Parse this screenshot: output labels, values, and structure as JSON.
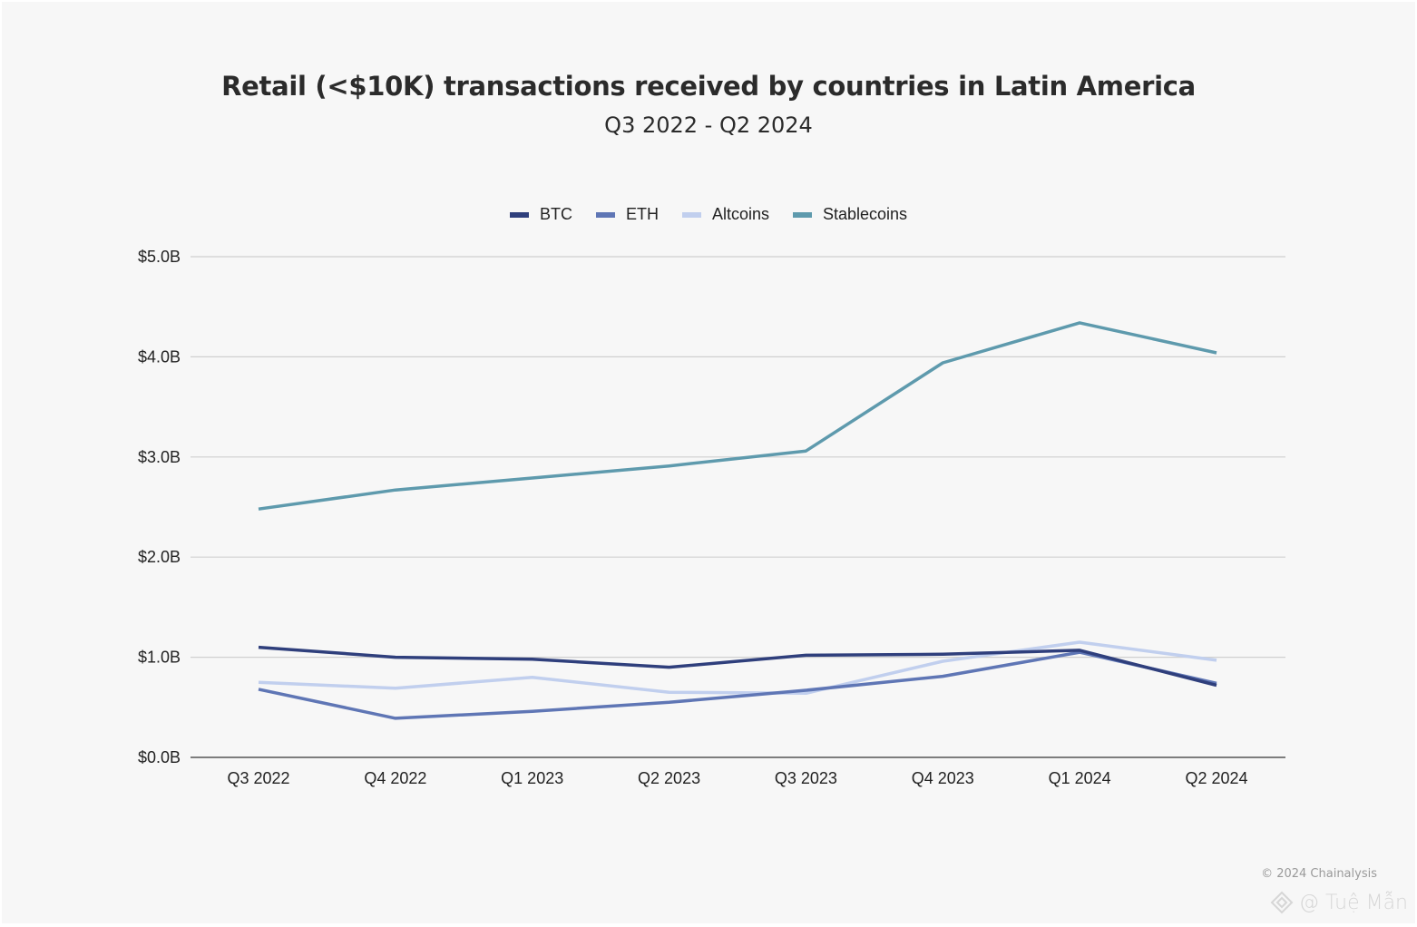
{
  "chart_data": {
    "type": "line",
    "title": "Retail (<$10K) transactions received by countries in Latin America",
    "subtitle": "Q3 2022 - Q2 2024",
    "xlabel": "",
    "ylabel": "",
    "categories": [
      "Q3 2022",
      "Q4 2022",
      "Q1 2023",
      "Q2 2023",
      "Q3 2023",
      "Q4 2023",
      "Q1 2024",
      "Q2 2024"
    ],
    "ylim": [
      0,
      5
    ],
    "yticks": [
      {
        "value": 0,
        "label": "$0.0B"
      },
      {
        "value": 1,
        "label": "$1.0B"
      },
      {
        "value": 2,
        "label": "$2.0B"
      },
      {
        "value": 3,
        "label": "$3.0B"
      },
      {
        "value": 4,
        "label": "$4.0B"
      },
      {
        "value": 5,
        "label": "$5.0B"
      }
    ],
    "grid": true,
    "legend_position": "top-center",
    "series": [
      {
        "name": "BTC",
        "color": "#2f3f7c",
        "values": [
          1.1,
          1.0,
          0.98,
          0.9,
          1.02,
          1.03,
          1.07,
          0.72
        ]
      },
      {
        "name": "ETH",
        "color": "#5f76b5",
        "values": [
          0.68,
          0.39,
          0.46,
          0.55,
          0.67,
          0.81,
          1.05,
          0.74
        ]
      },
      {
        "name": "Altcoins",
        "color": "#c1cfee",
        "values": [
          0.75,
          0.69,
          0.8,
          0.65,
          0.64,
          0.96,
          1.15,
          0.97
        ]
      },
      {
        "name": "Stablecoins",
        "color": "#5e9aad",
        "values": [
          2.48,
          2.67,
          2.79,
          2.91,
          3.06,
          3.94,
          4.34,
          4.04
        ]
      }
    ],
    "units": "USD billions"
  },
  "footer": {
    "credit": "© 2024 Chainalysis",
    "watermark": "@ Tuệ Mẫn"
  }
}
